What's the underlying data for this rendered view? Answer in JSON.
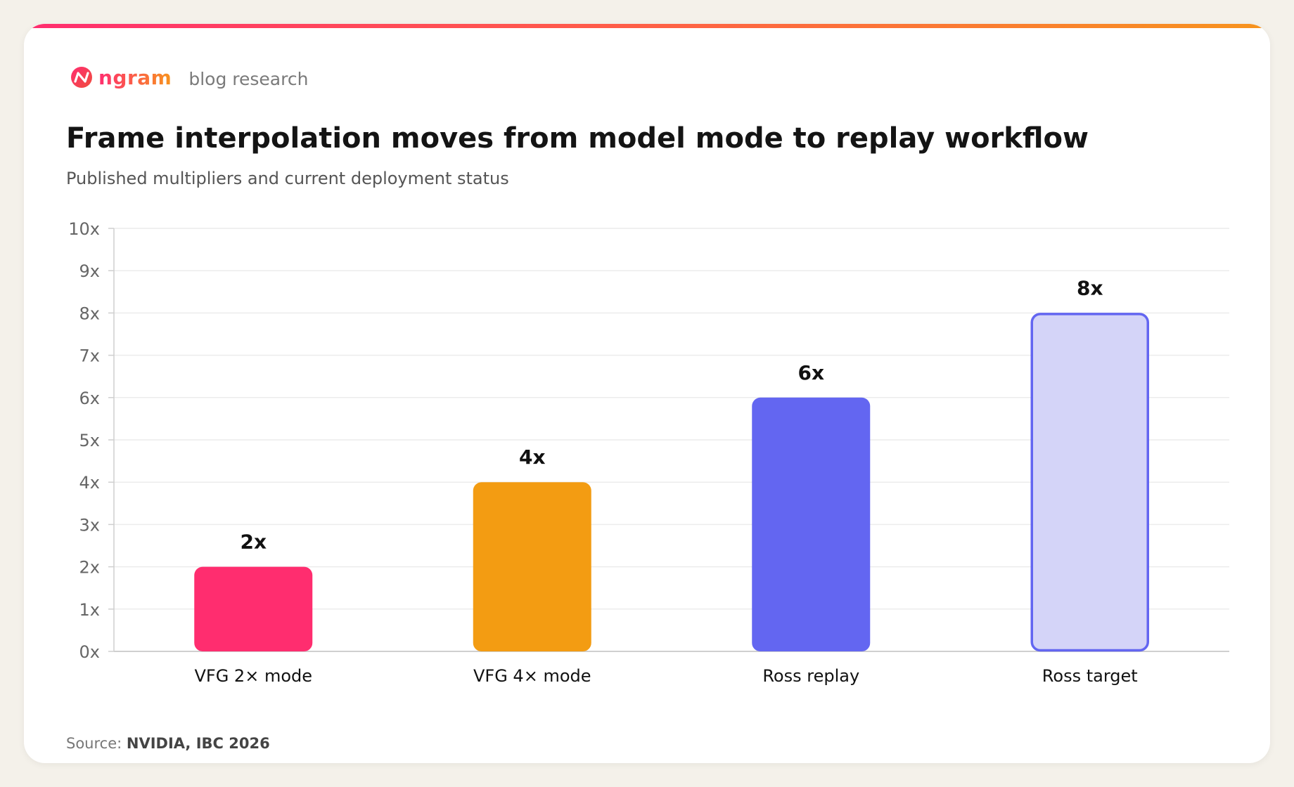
{
  "brand": {
    "name": "ngram",
    "section": "blog research",
    "logo_icon": "ngram-logo-icon"
  },
  "header": {
    "title": "Frame interpolation moves from model mode to replay workflow",
    "subtitle": "Published multipliers and current deployment status"
  },
  "colors": {
    "accent_gradient_start": "#ff2d6f",
    "accent_gradient_end": "#f7941d",
    "grid": "#ececec",
    "axis": "#cfcfcf"
  },
  "chart_data": {
    "type": "bar",
    "categories": [
      "VFG 2× mode",
      "VFG 4× mode",
      "Ross replay",
      "Ross target"
    ],
    "values": [
      2,
      4,
      6,
      8
    ],
    "value_labels": [
      "2x",
      "4x",
      "6x",
      "8x"
    ],
    "bar_styles": [
      {
        "fill": "#ff2d6f",
        "stroke": "none"
      },
      {
        "fill": "#f39c12",
        "stroke": "none"
      },
      {
        "fill": "#6366f1",
        "stroke": "none"
      },
      {
        "fill": "#d4d4f8",
        "stroke": "#6366f1"
      }
    ],
    "yticks": [
      0,
      1,
      2,
      3,
      4,
      5,
      6,
      7,
      8,
      9,
      10
    ],
    "ytick_labels": [
      "0x",
      "1x",
      "2x",
      "3x",
      "4x",
      "5x",
      "6x",
      "7x",
      "8x",
      "9x",
      "10x"
    ],
    "ylim": [
      0,
      10
    ],
    "grid": true,
    "xlabel": "",
    "ylabel": ""
  },
  "footer": {
    "source_prefix": "Source:",
    "source_text": "NVIDIA, IBC 2026"
  }
}
